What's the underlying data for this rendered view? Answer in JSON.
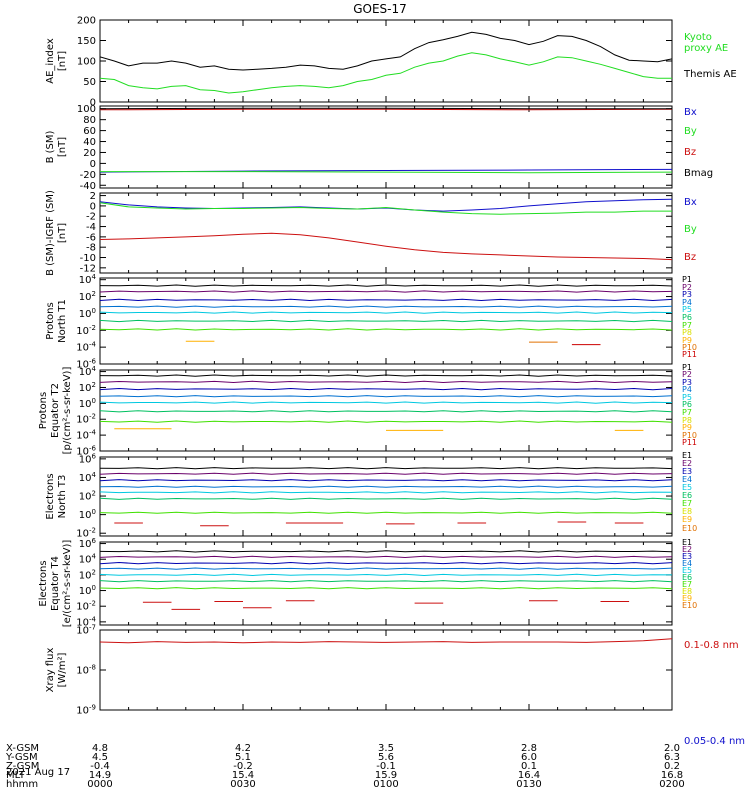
{
  "title": "GOES-17",
  "date": "2021 Aug 17",
  "colors": {
    "black": "#000000",
    "green": "#22dd22",
    "blue": "#1010cc",
    "red": "#cc1010",
    "p_series": [
      "#000000",
      "#6a006a",
      "#0000b0",
      "#0070d0",
      "#00c8e0",
      "#00c060",
      "#40e000",
      "#d8e000",
      "#ffb000",
      "#e07000",
      "#cc0000",
      "#880000"
    ]
  },
  "chart_data": [
    {
      "type": "line",
      "ylabel": "AE_index\n[nT]",
      "ylim": [
        0,
        200
      ],
      "yticks": [
        "0",
        "50",
        "100",
        "150",
        "200"
      ],
      "legend": [
        "Kyoto\nproxy AE",
        "Themis AE"
      ],
      "series": [
        {
          "name": "Themis AE",
          "color": "#000000",
          "x": [
            0,
            3,
            6,
            9,
            12,
            15,
            18,
            21,
            24,
            27,
            30,
            33,
            36,
            39,
            42,
            45,
            48,
            51,
            54,
            57,
            60,
            63,
            66,
            69,
            72,
            75,
            78,
            81,
            84,
            87,
            90,
            93,
            96,
            99,
            102,
            105,
            108,
            111,
            114,
            117,
            120
          ],
          "y": [
            110,
            100,
            88,
            95,
            95,
            100,
            95,
            85,
            88,
            80,
            78,
            80,
            82,
            85,
            90,
            88,
            82,
            80,
            88,
            100,
            105,
            110,
            130,
            145,
            152,
            160,
            170,
            165,
            155,
            150,
            140,
            148,
            162,
            160,
            150,
            135,
            115,
            102,
            100,
            98,
            105
          ]
        },
        {
          "name": "Kyoto proxy AE",
          "color": "#22dd22",
          "x": [
            0,
            3,
            6,
            9,
            12,
            15,
            18,
            21,
            24,
            27,
            30,
            33,
            36,
            39,
            42,
            45,
            48,
            51,
            54,
            57,
            60,
            63,
            66,
            69,
            72,
            75,
            78,
            81,
            84,
            87,
            90,
            93,
            96,
            99,
            102,
            105,
            108,
            111,
            114,
            117,
            120
          ],
          "y": [
            58,
            55,
            40,
            35,
            32,
            38,
            40,
            30,
            28,
            22,
            25,
            30,
            35,
            38,
            40,
            38,
            35,
            40,
            50,
            55,
            65,
            70,
            85,
            95,
            100,
            112,
            120,
            115,
            105,
            98,
            90,
            98,
            110,
            108,
            100,
            92,
            82,
            72,
            62,
            58,
            58
          ]
        }
      ]
    },
    {
      "type": "line",
      "ylabel": "B (SM)\n[nT]",
      "ylim": [
        -45,
        105
      ],
      "yticks": [
        "-40",
        "-20",
        "0",
        "20",
        "40",
        "60",
        "80",
        "100"
      ],
      "legend": [
        "Bx",
        "By",
        "Bz",
        "Bmag"
      ],
      "series": [
        {
          "name": "Bx",
          "color": "#1010cc",
          "x": [
            0,
            30,
            60,
            90,
            120
          ],
          "y": [
            -16,
            -14,
            -13,
            -12,
            -11
          ]
        },
        {
          "name": "By",
          "color": "#22dd22",
          "x": [
            0,
            30,
            60,
            90,
            120
          ],
          "y": [
            -15,
            -15,
            -16,
            -17,
            -16
          ]
        },
        {
          "name": "Bz",
          "color": "#cc1010",
          "x": [
            0,
            30,
            60,
            90,
            120
          ],
          "y": [
            98,
            99,
            99,
            98,
            99
          ]
        },
        {
          "name": "Bmag",
          "color": "#000000",
          "x": [
            0,
            30,
            60,
            90,
            120
          ],
          "y": [
            100,
            101,
            101,
            100,
            100
          ]
        }
      ]
    },
    {
      "type": "line",
      "ylabel": "B (SM)-IGRF (SM)\n[nT]",
      "ylim": [
        -13,
        2.5
      ],
      "yticks": [
        "-12",
        "-10",
        "-8",
        "-6",
        "-4",
        "-2",
        "0",
        "2"
      ],
      "legend": [
        "Bx",
        "By",
        "Bz"
      ],
      "series": [
        {
          "name": "Bx",
          "color": "#1010cc",
          "x": [
            0,
            6,
            12,
            18,
            24,
            30,
            36,
            42,
            48,
            54,
            60,
            66,
            72,
            78,
            84,
            90,
            96,
            102,
            108,
            114,
            120
          ],
          "y": [
            0.8,
            0.2,
            -0.2,
            -0.4,
            -0.5,
            -0.4,
            -0.3,
            -0.2,
            -0.4,
            -0.6,
            -0.4,
            -0.8,
            -1.0,
            -0.8,
            -0.5,
            0.0,
            0.4,
            0.8,
            1.0,
            1.2,
            1.3
          ]
        },
        {
          "name": "By",
          "color": "#22dd22",
          "x": [
            0,
            6,
            12,
            18,
            24,
            30,
            36,
            42,
            48,
            54,
            60,
            66,
            72,
            78,
            84,
            90,
            96,
            102,
            108,
            114,
            120
          ],
          "y": [
            0.6,
            -0.2,
            -0.4,
            -0.6,
            -0.5,
            -0.5,
            -0.4,
            -0.3,
            -0.5,
            -0.6,
            -0.3,
            -0.8,
            -1.2,
            -1.5,
            -1.6,
            -1.5,
            -1.4,
            -1.2,
            -1.2,
            -1.0,
            -1.0
          ]
        },
        {
          "name": "Bz",
          "color": "#cc1010",
          "x": [
            0,
            6,
            12,
            18,
            24,
            30,
            36,
            42,
            48,
            54,
            60,
            66,
            72,
            78,
            84,
            90,
            96,
            102,
            108,
            114,
            120
          ],
          "y": [
            -6.5,
            -6.4,
            -6.2,
            -6.0,
            -5.8,
            -5.5,
            -5.3,
            -5.6,
            -6.2,
            -7.0,
            -7.8,
            -8.5,
            -9.0,
            -9.3,
            -9.5,
            -9.7,
            -9.9,
            -10.0,
            -10.1,
            -10.2,
            -10.4
          ]
        }
      ]
    },
    {
      "type": "line",
      "ylabel": "Protons\nNorth T1",
      "ylog": true,
      "ylim": [
        -6,
        4.2
      ],
      "yticks": [
        "10^4",
        "10^2",
        "10^0",
        "10^-2",
        "10^-4",
        "10^-6"
      ],
      "legend": [
        "P1",
        "P2",
        "P3",
        "P4",
        "P5",
        "P6",
        "P7",
        "P8",
        "P9",
        "P10",
        "P11"
      ],
      "levels": [
        3.3,
        2.6,
        1.6,
        0.8,
        0.1,
        -0.9,
        -1.9
      ],
      "segments": [
        {
          "color": "#ffb000",
          "x": [
            18,
            24
          ],
          "y": -3.3
        },
        {
          "color": "#e07000",
          "x": [
            90,
            96
          ],
          "y": -3.4
        },
        {
          "color": "#cc0000",
          "x": [
            99,
            105
          ],
          "y": -3.7
        }
      ]
    },
    {
      "type": "line",
      "ylabel": "Protons\nEquator T2\n[p/(cm^2-s-sr-keV)]",
      "ylog": true,
      "ylim": [
        -6,
        4.2
      ],
      "yticks": [
        "10^4",
        "10^2",
        "10^0",
        "10^-2",
        "10^-4",
        "10^-6"
      ],
      "legend": [
        "P1",
        "P2",
        "P3",
        "P4",
        "P5",
        "P6",
        "P7",
        "P8",
        "P9",
        "P10",
        "P11"
      ],
      "levels": [
        3.5,
        2.7,
        1.8,
        0.9,
        0.1,
        -1.0,
        -2.3
      ],
      "segments": [
        {
          "color": "#ffb000",
          "x": [
            3,
            15
          ],
          "y": -3.2
        },
        {
          "color": "#ffb000",
          "x": [
            60,
            72
          ],
          "y": -3.4
        },
        {
          "color": "#ffb000",
          "x": [
            108,
            114
          ],
          "y": -3.4
        }
      ]
    },
    {
      "type": "line",
      "ylabel": "Electrons\nNorth T3",
      "ylog": true,
      "ylim": [
        -2.3,
        6.2
      ],
      "yticks": [
        "10^6",
        "10^4",
        "10^2",
        "10^0",
        "10^-2"
      ],
      "legend": [
        "E1",
        "E2",
        "E3",
        "E4",
        "E5",
        "E6",
        "E7",
        "E8",
        "E9",
        "E10"
      ],
      "levels": [
        5.0,
        4.4,
        3.7,
        3.0,
        2.4,
        1.7,
        0.2
      ],
      "segments": [
        {
          "color": "#cc1010",
          "x": [
            3,
            9
          ],
          "y": -0.9
        },
        {
          "color": "#cc1010",
          "x": [
            21,
            27
          ],
          "y": -1.2
        },
        {
          "color": "#cc1010",
          "x": [
            39,
            51
          ],
          "y": -0.9
        },
        {
          "color": "#cc1010",
          "x": [
            60,
            66
          ],
          "y": -1.0
        },
        {
          "color": "#cc1010",
          "x": [
            75,
            81
          ],
          "y": -0.9
        },
        {
          "color": "#cc1010",
          "x": [
            96,
            102
          ],
          "y": -0.8
        },
        {
          "color": "#cc1010",
          "x": [
            108,
            114
          ],
          "y": -0.9
        }
      ]
    },
    {
      "type": "line",
      "ylabel": "Electrons\nEquator T4\n[e/(cm^2-s-sr-keV)]",
      "ylog": true,
      "ylim": [
        -4.4,
        6.2
      ],
      "yticks": [
        "10^6",
        "10^4",
        "10^2",
        "10^0",
        "10^-2",
        "10^-4"
      ],
      "legend": [
        "E1",
        "E2",
        "E3",
        "E4",
        "E5",
        "E6",
        "E7",
        "E8",
        "E9",
        "E10"
      ],
      "levels": [
        5.0,
        4.3,
        3.5,
        2.8,
        2.0,
        1.2,
        0.3
      ],
      "segments": [
        {
          "color": "#cc1010",
          "x": [
            9,
            15
          ],
          "y": -1.5
        },
        {
          "color": "#cc1010",
          "x": [
            15,
            21
          ],
          "y": -2.4
        },
        {
          "color": "#cc1010",
          "x": [
            24,
            30
          ],
          "y": -1.4
        },
        {
          "color": "#cc1010",
          "x": [
            30,
            36
          ],
          "y": -2.2
        },
        {
          "color": "#cc1010",
          "x": [
            39,
            45
          ],
          "y": -1.3
        },
        {
          "color": "#cc1010",
          "x": [
            66,
            72
          ],
          "y": -1.6
        },
        {
          "color": "#cc1010",
          "x": [
            90,
            96
          ],
          "y": -1.3
        },
        {
          "color": "#cc1010",
          "x": [
            105,
            111
          ],
          "y": -1.4
        }
      ]
    },
    {
      "type": "line",
      "ylabel": "Xray flux\n[W/m^2]",
      "ylog": true,
      "ylim": [
        -9,
        -7
      ],
      "yticks": [
        "10^-7",
        "10^-8",
        "10^-9"
      ],
      "legend": [
        "0.1-0.8 nm",
        "0.05-0.4 nm"
      ],
      "series": [
        {
          "name": "0.1-0.8 nm",
          "color": "#cc1010",
          "x": [
            0,
            6,
            12,
            18,
            24,
            30,
            36,
            42,
            48,
            54,
            60,
            66,
            72,
            78,
            84,
            90,
            96,
            102,
            108,
            114,
            120
          ],
          "y": [
            -7.3,
            -7.32,
            -7.29,
            -7.31,
            -7.3,
            -7.32,
            -7.3,
            -7.31,
            -7.29,
            -7.3,
            -7.31,
            -7.3,
            -7.29,
            -7.31,
            -7.3,
            -7.3,
            -7.3,
            -7.31,
            -7.29,
            -7.27,
            -7.22
          ]
        }
      ]
    }
  ],
  "ephemeris": {
    "labels": [
      "X-GSM",
      "Y-GSM",
      "Z-GSM",
      "MLT",
      "hhmm"
    ],
    "columns": [
      [
        "4.8",
        "4.5",
        "-0.4",
        "14.9",
        "0000"
      ],
      [
        "4.2",
        "5.1",
        "-0.2",
        "15.4",
        "0030"
      ],
      [
        "3.5",
        "5.6",
        "-0.1",
        "15.9",
        "0100"
      ],
      [
        "2.8",
        "6.0",
        "0.1",
        "16.4",
        "0130"
      ],
      [
        "2.0",
        "6.3",
        "0.2",
        "16.8",
        "0200"
      ]
    ]
  }
}
